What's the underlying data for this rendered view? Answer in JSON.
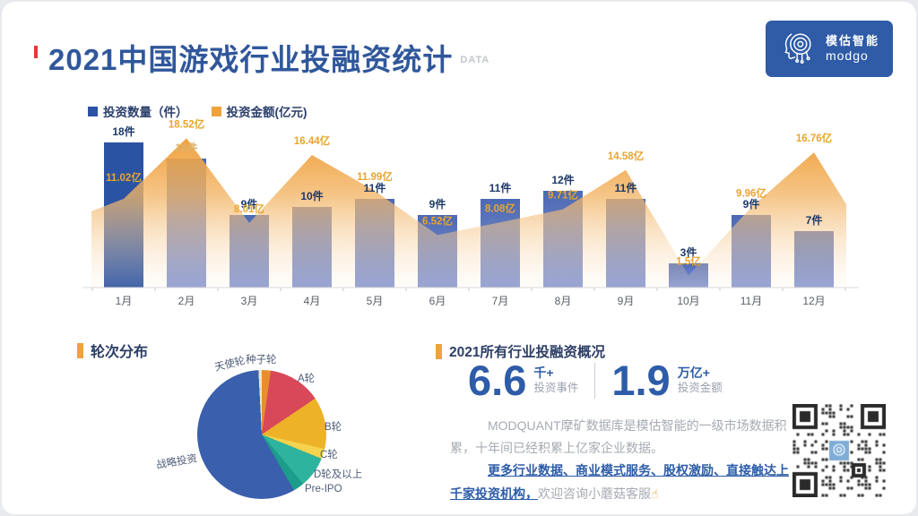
{
  "page": {
    "title": "2021中国游戏行业投融资统计",
    "title_suffix": "DATA"
  },
  "logo": {
    "name_cn": "模估智能",
    "name_en": "modgo"
  },
  "chart_data": [
    {
      "type": "bar+area",
      "categories": [
        "1月",
        "2月",
        "3月",
        "4月",
        "5月",
        "6月",
        "7月",
        "8月",
        "9月",
        "10月",
        "11月",
        "12月"
      ],
      "series": [
        {
          "name": "投资数量（件）",
          "type": "bar",
          "unit": "件",
          "values": [
            18,
            16,
            9,
            10,
            11,
            9,
            11,
            12,
            11,
            3,
            9,
            7
          ],
          "color": "#4C69B4",
          "highlight_color": "#2B53A3",
          "highlight_index": 0
        },
        {
          "name": "投资金额(亿元)",
          "type": "area",
          "unit": "亿",
          "values": [
            11.02,
            18.52,
            8.01,
            16.44,
            11.99,
            6.52,
            8.08,
            9.71,
            14.58,
            1.5,
            9.96,
            16.76
          ],
          "color": "#F0A33C"
        }
      ],
      "ylim": [
        0,
        20
      ],
      "legend_position": "top-left",
      "grid": false
    },
    {
      "type": "pie",
      "title": "轮次分布",
      "slices": [
        {
          "label": "种子轮",
          "color": "#E78F2E",
          "deg": 8
        },
        {
          "label": "A轮",
          "color": "#D84859",
          "deg": 48
        },
        {
          "label": "B轮",
          "color": "#EEB229",
          "deg": 47
        },
        {
          "label": "C轮",
          "color": "#F5D34F",
          "deg": 9
        },
        {
          "label": "D轮及以上",
          "color": "#2EB39E",
          "deg": 28
        },
        {
          "label": "Pre-IPO",
          "color": "#1C9C8B",
          "deg": 10
        },
        {
          "label": "战略投资",
          "color": "#3A5FAD",
          "deg": 207
        },
        {
          "label": "天使轮",
          "color": "#EFE3C8",
          "deg": 3
        }
      ]
    }
  ],
  "overview": {
    "title": "2021所有行业投融资概况",
    "stats": [
      {
        "value": "6.6",
        "unit": "千+",
        "label": "投资事件"
      },
      {
        "value": "1.9",
        "unit": "万亿+",
        "label": "投资金额"
      }
    ],
    "paragraph1": "MODQUANT摩矿数据库是模估智能的一级市场数据积累，十年间已经积累上亿家企业数据。",
    "highlight": "更多行业数据、商业模式服务、股权激励、直接触达上千家投资机构，",
    "tail": "欢迎咨询小蘑菇客服",
    "hand_icon": "☝"
  },
  "colors": {
    "title_blue": "#30579B",
    "bar_blue": "#4C69B4",
    "bar_dark_blue": "#2B53A3",
    "area_orange": "#F0A33C",
    "accent_orange": "#F0A339",
    "stat_blue": "#2D5CA8"
  }
}
